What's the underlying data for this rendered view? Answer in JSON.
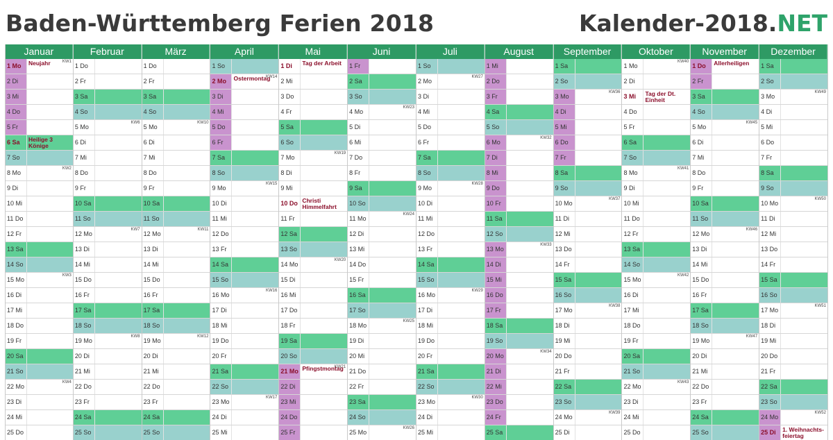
{
  "header": {
    "title": "Baden-Württemberg Ferien 2018",
    "brand_main": "Kalender-2018.",
    "brand_accent": "NET"
  },
  "colors": {
    "saturday": "#5fcf96",
    "sunday": "#99d1cd",
    "ferien": "#c993ce",
    "header": "#2e9a64",
    "holiday_text": "#8b0f2b"
  },
  "months": [
    {
      "name": "Januar",
      "days": [
        {
          "t": "1 Mo",
          "h": true,
          "f": true,
          "kw": "KW1",
          "n": "Neujahr"
        },
        {
          "t": "2 Di",
          "f": true
        },
        {
          "t": "3 Mi",
          "f": true
        },
        {
          "t": "4 Do",
          "f": true
        },
        {
          "t": "5 Fr",
          "f": true
        },
        {
          "t": "6 Sa",
          "h": true,
          "n": "Heilige 3 Könige"
        },
        {
          "t": "7 So"
        },
        {
          "t": "8 Mo",
          "kw": "KW2"
        },
        {
          "t": "9 Di"
        },
        {
          "t": "10 Mi"
        },
        {
          "t": "11 Do"
        },
        {
          "t": "12 Fr"
        },
        {
          "t": "13 Sa"
        },
        {
          "t": "14 So"
        },
        {
          "t": "15 Mo",
          "kw": "KW3"
        },
        {
          "t": "16 Di"
        },
        {
          "t": "17 Mi"
        },
        {
          "t": "18 Do"
        },
        {
          "t": "19 Fr"
        },
        {
          "t": "20 Sa"
        },
        {
          "t": "21 So"
        },
        {
          "t": "22 Mo",
          "kw": "KW4"
        },
        {
          "t": "23 Di"
        },
        {
          "t": "24 Mi"
        },
        {
          "t": "25 Do"
        }
      ]
    },
    {
      "name": "Februar",
      "days": [
        {
          "t": "1 Do"
        },
        {
          "t": "2 Fr"
        },
        {
          "t": "3 Sa"
        },
        {
          "t": "4 So"
        },
        {
          "t": "5 Mo",
          "kw": "KW6"
        },
        {
          "t": "6 Di"
        },
        {
          "t": "7 Mi"
        },
        {
          "t": "8 Do"
        },
        {
          "t": "9 Fr"
        },
        {
          "t": "10 Sa"
        },
        {
          "t": "11 So"
        },
        {
          "t": "12 Mo",
          "kw": "KW7"
        },
        {
          "t": "13 Di"
        },
        {
          "t": "14 Mi"
        },
        {
          "t": "15 Do"
        },
        {
          "t": "16 Fr"
        },
        {
          "t": "17 Sa"
        },
        {
          "t": "18 So"
        },
        {
          "t": "19 Mo",
          "kw": "KW8"
        },
        {
          "t": "20 Di"
        },
        {
          "t": "21 Mi"
        },
        {
          "t": "22 Do"
        },
        {
          "t": "23 Fr"
        },
        {
          "t": "24 Sa"
        },
        {
          "t": "25 So"
        }
      ]
    },
    {
      "name": "März",
      "days": [
        {
          "t": "1 Do"
        },
        {
          "t": "2 Fr"
        },
        {
          "t": "3 Sa"
        },
        {
          "t": "4 So"
        },
        {
          "t": "5 Mo",
          "kw": "KW10"
        },
        {
          "t": "6 Di"
        },
        {
          "t": "7 Mi"
        },
        {
          "t": "8 Do"
        },
        {
          "t": "9 Fr"
        },
        {
          "t": "10 Sa"
        },
        {
          "t": "11 So"
        },
        {
          "t": "12 Mo",
          "kw": "KW11"
        },
        {
          "t": "13 Di"
        },
        {
          "t": "14 Mi"
        },
        {
          "t": "15 Do"
        },
        {
          "t": "16 Fr"
        },
        {
          "t": "17 Sa"
        },
        {
          "t": "18 So"
        },
        {
          "t": "19 Mo",
          "kw": "KW12"
        },
        {
          "t": "20 Di"
        },
        {
          "t": "21 Mi"
        },
        {
          "t": "22 Do"
        },
        {
          "t": "23 Fr"
        },
        {
          "t": "24 Sa"
        },
        {
          "t": "25 So"
        }
      ]
    },
    {
      "name": "April",
      "days": [
        {
          "t": "1 So"
        },
        {
          "t": "2 Mo",
          "h": true,
          "f": true,
          "kw": "KW14",
          "n": "Ostermontag"
        },
        {
          "t": "3 Di",
          "f": true
        },
        {
          "t": "4 Mi",
          "f": true
        },
        {
          "t": "5 Do",
          "f": true
        },
        {
          "t": "6 Fr",
          "f": true
        },
        {
          "t": "7 Sa"
        },
        {
          "t": "8 So"
        },
        {
          "t": "9 Mo",
          "kw": "KW15"
        },
        {
          "t": "10 Di"
        },
        {
          "t": "11 Mi"
        },
        {
          "t": "12 Do"
        },
        {
          "t": "13 Fr"
        },
        {
          "t": "14 Sa"
        },
        {
          "t": "15 So"
        },
        {
          "t": "16 Mo",
          "kw": "KW16"
        },
        {
          "t": "17 Di"
        },
        {
          "t": "18 Mi"
        },
        {
          "t": "19 Do"
        },
        {
          "t": "20 Fr"
        },
        {
          "t": "21 Sa"
        },
        {
          "t": "22 So"
        },
        {
          "t": "23 Mo",
          "kw": "KW17"
        },
        {
          "t": "24 Di"
        },
        {
          "t": "25 Mi"
        }
      ]
    },
    {
      "name": "Mai",
      "days": [
        {
          "t": "1 Di",
          "h": true,
          "n": "Tag der Arbeit"
        },
        {
          "t": "2 Mi"
        },
        {
          "t": "3 Do"
        },
        {
          "t": "4 Fr"
        },
        {
          "t": "5 Sa"
        },
        {
          "t": "6 So"
        },
        {
          "t": "7 Mo",
          "kw": "KW19"
        },
        {
          "t": "8 Di"
        },
        {
          "t": "9 Mi"
        },
        {
          "t": "10 Do",
          "h": true,
          "n": "Christi Himmelfahrt"
        },
        {
          "t": "11 Fr"
        },
        {
          "t": "12 Sa"
        },
        {
          "t": "13 So"
        },
        {
          "t": "14 Mo",
          "kw": "KW20"
        },
        {
          "t": "15 Di"
        },
        {
          "t": "16 Mi"
        },
        {
          "t": "17 Do"
        },
        {
          "t": "18 Fr"
        },
        {
          "t": "19 Sa"
        },
        {
          "t": "20 So"
        },
        {
          "t": "21 Mo",
          "h": true,
          "f": true,
          "kw": "KW21",
          "n": "Pfingstmontag"
        },
        {
          "t": "22 Di",
          "f": true
        },
        {
          "t": "23 Mi",
          "f": true
        },
        {
          "t": "24 Do",
          "f": true
        },
        {
          "t": "25 Fr",
          "f": true
        }
      ]
    },
    {
      "name": "Juni",
      "days": [
        {
          "t": "1 Fr",
          "f": true
        },
        {
          "t": "2 Sa"
        },
        {
          "t": "3 So"
        },
        {
          "t": "4 Mo",
          "kw": "KW23"
        },
        {
          "t": "5 Di"
        },
        {
          "t": "6 Mi"
        },
        {
          "t": "7 Do"
        },
        {
          "t": "8 Fr"
        },
        {
          "t": "9 Sa"
        },
        {
          "t": "10 So"
        },
        {
          "t": "11 Mo",
          "kw": "KW24"
        },
        {
          "t": "12 Di"
        },
        {
          "t": "13 Mi"
        },
        {
          "t": "14 Do"
        },
        {
          "t": "15 Fr"
        },
        {
          "t": "16 Sa"
        },
        {
          "t": "17 So"
        },
        {
          "t": "18 Mo",
          "kw": "KW25"
        },
        {
          "t": "19 Di"
        },
        {
          "t": "20 Mi"
        },
        {
          "t": "21 Do"
        },
        {
          "t": "22 Fr"
        },
        {
          "t": "23 Sa"
        },
        {
          "t": "24 So"
        },
        {
          "t": "25 Mo",
          "kw": "KW26"
        }
      ]
    },
    {
      "name": "Juli",
      "days": [
        {
          "t": "1 So"
        },
        {
          "t": "2 Mo",
          "kw": "KW27"
        },
        {
          "t": "3 Di"
        },
        {
          "t": "4 Mi"
        },
        {
          "t": "5 Do"
        },
        {
          "t": "6 Fr"
        },
        {
          "t": "7 Sa"
        },
        {
          "t": "8 So"
        },
        {
          "t": "9 Mo",
          "kw": "KW28"
        },
        {
          "t": "10 Di"
        },
        {
          "t": "11 Mi"
        },
        {
          "t": "12 Do"
        },
        {
          "t": "13 Fr"
        },
        {
          "t": "14 Sa"
        },
        {
          "t": "15 So"
        },
        {
          "t": "16 Mo",
          "kw": "KW29"
        },
        {
          "t": "17 Di"
        },
        {
          "t": "18 Mi"
        },
        {
          "t": "19 Do"
        },
        {
          "t": "20 Fr"
        },
        {
          "t": "21 Sa"
        },
        {
          "t": "22 So"
        },
        {
          "t": "23 Mo",
          "kw": "KW30"
        },
        {
          "t": "24 Di"
        },
        {
          "t": "25 Mi"
        }
      ]
    },
    {
      "name": "August",
      "days": [
        {
          "t": "1 Mi",
          "f": true
        },
        {
          "t": "2 Do",
          "f": true
        },
        {
          "t": "3 Fr",
          "f": true
        },
        {
          "t": "4 Sa"
        },
        {
          "t": "5 So"
        },
        {
          "t": "6 Mo",
          "f": true,
          "kw": "KW32"
        },
        {
          "t": "7 Di",
          "f": true
        },
        {
          "t": "8 Mi",
          "f": true
        },
        {
          "t": "9 Do",
          "f": true
        },
        {
          "t": "10 Fr",
          "f": true
        },
        {
          "t": "11 Sa"
        },
        {
          "t": "12 So"
        },
        {
          "t": "13 Mo",
          "f": true,
          "kw": "KW33"
        },
        {
          "t": "14 Di",
          "f": true
        },
        {
          "t": "15 Mi",
          "f": true
        },
        {
          "t": "16 Do",
          "f": true
        },
        {
          "t": "17 Fr",
          "f": true
        },
        {
          "t": "18 Sa"
        },
        {
          "t": "19 So"
        },
        {
          "t": "20 Mo",
          "f": true,
          "kw": "KW34"
        },
        {
          "t": "21 Di",
          "f": true
        },
        {
          "t": "22 Mi",
          "f": true
        },
        {
          "t": "23 Do",
          "f": true
        },
        {
          "t": "24 Fr",
          "f": true
        },
        {
          "t": "25 Sa"
        }
      ]
    },
    {
      "name": "September",
      "days": [
        {
          "t": "1 Sa"
        },
        {
          "t": "2 So"
        },
        {
          "t": "3 Mo",
          "f": true,
          "kw": "KW36"
        },
        {
          "t": "4 Di",
          "f": true
        },
        {
          "t": "5 Mi",
          "f": true
        },
        {
          "t": "6 Do",
          "f": true
        },
        {
          "t": "7 Fr",
          "f": true
        },
        {
          "t": "8 Sa"
        },
        {
          "t": "9 So"
        },
        {
          "t": "10 Mo",
          "kw": "KW37"
        },
        {
          "t": "11 Di"
        },
        {
          "t": "12 Mi"
        },
        {
          "t": "13 Do"
        },
        {
          "t": "14 Fr"
        },
        {
          "t": "15 Sa"
        },
        {
          "t": "16 So"
        },
        {
          "t": "17 Mo",
          "kw": "KW38"
        },
        {
          "t": "18 Di"
        },
        {
          "t": "19 Mi"
        },
        {
          "t": "20 Do"
        },
        {
          "t": "21 Fr"
        },
        {
          "t": "22 Sa"
        },
        {
          "t": "23 So"
        },
        {
          "t": "24 Mo",
          "kw": "KW39"
        },
        {
          "t": "25 Di"
        }
      ]
    },
    {
      "name": "Oktober",
      "days": [
        {
          "t": "1 Mo",
          "kw": "KW40"
        },
        {
          "t": "2 Di"
        },
        {
          "t": "3 Mi",
          "h": true,
          "n": "Tag der Dt. Einheit"
        },
        {
          "t": "4 Do"
        },
        {
          "t": "5 Fr"
        },
        {
          "t": "6 Sa"
        },
        {
          "t": "7 So"
        },
        {
          "t": "8 Mo",
          "kw": "KW41"
        },
        {
          "t": "9 Di"
        },
        {
          "t": "10 Mi"
        },
        {
          "t": "11 Do"
        },
        {
          "t": "12 Fr"
        },
        {
          "t": "13 Sa"
        },
        {
          "t": "14 So"
        },
        {
          "t": "15 Mo",
          "kw": "KW42"
        },
        {
          "t": "16 Di"
        },
        {
          "t": "17 Mi"
        },
        {
          "t": "18 Do"
        },
        {
          "t": "19 Fr"
        },
        {
          "t": "20 Sa"
        },
        {
          "t": "21 So"
        },
        {
          "t": "22 Mo",
          "kw": "KW43"
        },
        {
          "t": "23 Di"
        },
        {
          "t": "24 Mi"
        },
        {
          "t": "25 Do"
        }
      ]
    },
    {
      "name": "November",
      "days": [
        {
          "t": "1 Do",
          "h": true,
          "f": true,
          "n": "Allerheiligen"
        },
        {
          "t": "2 Fr",
          "f": true
        },
        {
          "t": "3 Sa"
        },
        {
          "t": "4 So"
        },
        {
          "t": "5 Mo",
          "kw": "KW45"
        },
        {
          "t": "6 Di"
        },
        {
          "t": "7 Mi"
        },
        {
          "t": "8 Do"
        },
        {
          "t": "9 Fr"
        },
        {
          "t": "10 Sa"
        },
        {
          "t": "11 So"
        },
        {
          "t": "12 Mo",
          "kw": "KW46"
        },
        {
          "t": "13 Di"
        },
        {
          "t": "14 Mi"
        },
        {
          "t": "15 Do"
        },
        {
          "t": "16 Fr"
        },
        {
          "t": "17 Sa"
        },
        {
          "t": "18 So"
        },
        {
          "t": "19 Mo",
          "kw": "KW47"
        },
        {
          "t": "20 Di"
        },
        {
          "t": "21 Mi"
        },
        {
          "t": "22 Do"
        },
        {
          "t": "23 Fr"
        },
        {
          "t": "24 Sa"
        },
        {
          "t": "25 So"
        }
      ]
    },
    {
      "name": "Dezember",
      "days": [
        {
          "t": "1 Sa"
        },
        {
          "t": "2 So"
        },
        {
          "t": "3 Mo",
          "kw": "KW49"
        },
        {
          "t": "4 Di"
        },
        {
          "t": "5 Mi"
        },
        {
          "t": "6 Do"
        },
        {
          "t": "7 Fr"
        },
        {
          "t": "8 Sa"
        },
        {
          "t": "9 So"
        },
        {
          "t": "10 Mo",
          "kw": "KW50"
        },
        {
          "t": "11 Di"
        },
        {
          "t": "12 Mi"
        },
        {
          "t": "13 Do"
        },
        {
          "t": "14 Fr"
        },
        {
          "t": "15 Sa"
        },
        {
          "t": "16 So"
        },
        {
          "t": "17 Mo",
          "kw": "KW51"
        },
        {
          "t": "18 Di"
        },
        {
          "t": "19 Mi"
        },
        {
          "t": "20 Do"
        },
        {
          "t": "21 Fr"
        },
        {
          "t": "22 Sa"
        },
        {
          "t": "23 So"
        },
        {
          "t": "24 Mo",
          "f": true,
          "kw": "KW52"
        },
        {
          "t": "25 Di",
          "h": true,
          "f": true,
          "n": "1. Weihnachts-feiertag"
        }
      ]
    }
  ]
}
